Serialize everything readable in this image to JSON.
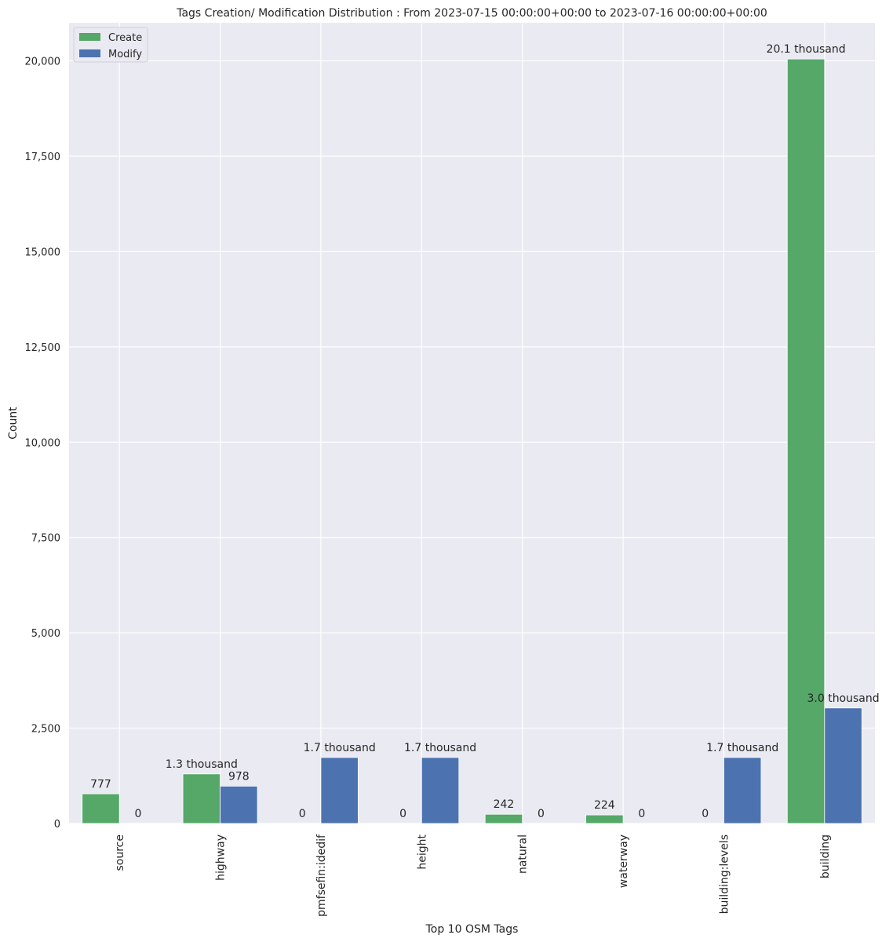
{
  "chart_data": {
    "type": "bar",
    "title": "Tags Creation/ Modification Distribution : From 2023-07-15 00:00:00+00:00 to 2023-07-16 00:00:00+00:00",
    "xlabel": "Top 10 OSM Tags",
    "ylabel": "Count",
    "categories": [
      "source",
      "highway",
      "pmfsefin:idedif",
      "height",
      "natural",
      "waterway",
      "building:levels",
      "building"
    ],
    "series": [
      {
        "name": "Create",
        "color": "#55a868",
        "values": [
          777,
          1300,
          0,
          0,
          242,
          224,
          0,
          20050
        ],
        "labels": [
          "777",
          "1.3 thousand",
          "0",
          "0",
          "242",
          "224",
          "0",
          "20.1 thousand"
        ]
      },
      {
        "name": "Modify",
        "color": "#4c72b0",
        "values": [
          0,
          978,
          1730,
          1730,
          0,
          0,
          1730,
          3030
        ],
        "labels": [
          "0",
          "978",
          "1.7 thousand",
          "1.7 thousand",
          "0",
          "0",
          "1.7 thousand",
          "3.0 thousand"
        ]
      }
    ],
    "ylim": [
      0,
      21000
    ],
    "yticks": [
      0,
      2500,
      5000,
      7500,
      10000,
      12500,
      15000,
      17500,
      20000
    ],
    "ytick_labels": [
      "0",
      "2,500",
      "5,000",
      "7,500",
      "10,000",
      "12,500",
      "15,000",
      "17,500",
      "20,000"
    ],
    "grid": true,
    "legend_position": "top-left",
    "background_color": "#eaeaf2"
  }
}
